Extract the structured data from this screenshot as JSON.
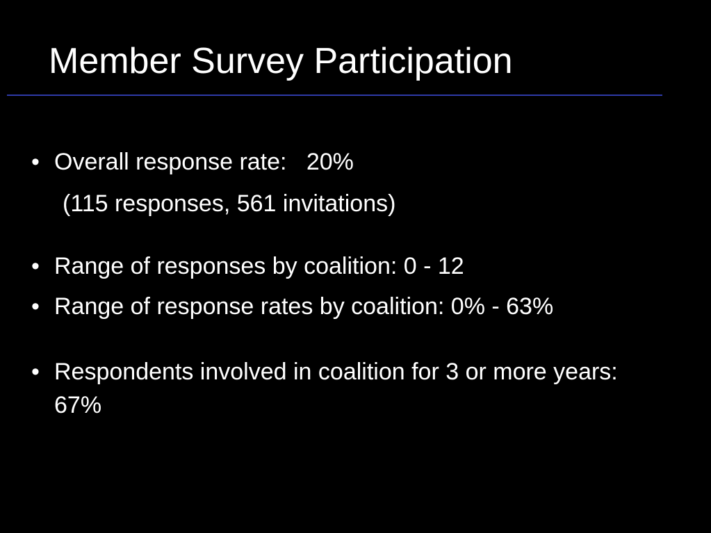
{
  "slide": {
    "title": "Member Survey Participation",
    "bullets": [
      {
        "text": "Overall response rate:   20%",
        "sub": "(115 responses, 561 invitations)"
      },
      {
        "text": "Range of responses by coalition: 0 - 12"
      },
      {
        "text": "Range of response rates by coalition: 0% - 63%"
      },
      {
        "text": "Respondents involved in coalition for 3 or more years: 67%"
      }
    ]
  }
}
